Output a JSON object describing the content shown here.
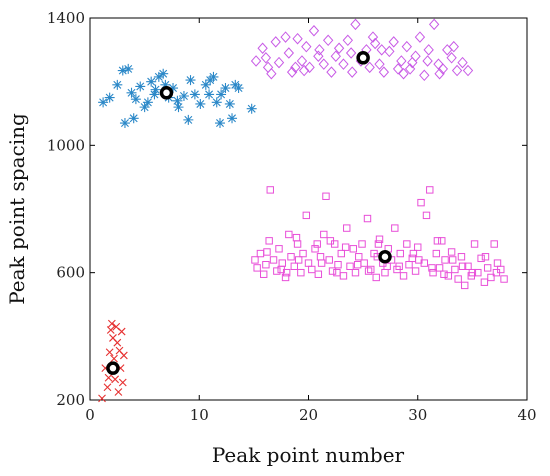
{
  "chart_data": {
    "type": "scatter",
    "title": "",
    "xlabel": "Peak point number",
    "ylabel": "Peak point spacing",
    "xlim": [
      0,
      40
    ],
    "ylim": [
      200,
      1400
    ],
    "xticks": [
      0,
      10,
      20,
      30,
      40
    ],
    "yticks": [
      200,
      600,
      1000,
      1400
    ],
    "x_tick_labels": [
      "0",
      "10",
      "20",
      "30",
      "40"
    ],
    "y_tick_labels": [
      "200",
      "600",
      "1000",
      "1400"
    ],
    "grid": false,
    "legend": "none",
    "series": [
      {
        "marker": "asterisk",
        "color": "#2b88c8",
        "points": [
          [
            1.2,
            1135
          ],
          [
            1.8,
            1150
          ],
          [
            2.5,
            1190
          ],
          [
            3.0,
            1235
          ],
          [
            3.5,
            1240
          ],
          [
            3.2,
            1070
          ],
          [
            3.8,
            1165
          ],
          [
            4.2,
            1145
          ],
          [
            4.6,
            1185
          ],
          [
            5.0,
            1120
          ],
          [
            5.6,
            1200
          ],
          [
            5.9,
            1160
          ],
          [
            6.3,
            1215
          ],
          [
            6.7,
            1225
          ],
          [
            6.9,
            1190
          ],
          [
            7.2,
            1150
          ],
          [
            7.6,
            1180
          ],
          [
            8.1,
            1120
          ],
          [
            8.6,
            1155
          ],
          [
            9.2,
            1205
          ],
          [
            9.6,
            1160
          ],
          [
            10.1,
            1130
          ],
          [
            10.6,
            1190
          ],
          [
            10.9,
            1160
          ],
          [
            11.3,
            1215
          ],
          [
            11.6,
            1135
          ],
          [
            11.9,
            1070
          ],
          [
            12.4,
            1180
          ],
          [
            12.8,
            1130
          ],
          [
            13.0,
            1085
          ],
          [
            13.3,
            1190
          ],
          [
            13.6,
            1180
          ],
          [
            5.3,
            1135
          ],
          [
            9.0,
            1080
          ],
          [
            12.0,
            1160
          ],
          [
            14.8,
            1115
          ],
          [
            4.0,
            1085
          ],
          [
            8.0,
            1140
          ],
          [
            11.0,
            1205
          ],
          [
            6.0,
            1175
          ]
        ]
      },
      {
        "marker": "diamond",
        "color": "#c85ae6",
        "points": [
          [
            15.2,
            1265
          ],
          [
            15.8,
            1305
          ],
          [
            16.3,
            1245
          ],
          [
            16.6,
            1225
          ],
          [
            17.0,
            1325
          ],
          [
            17.3,
            1260
          ],
          [
            17.9,
            1340
          ],
          [
            18.2,
            1290
          ],
          [
            18.5,
            1230
          ],
          [
            19.0,
            1335
          ],
          [
            19.4,
            1265
          ],
          [
            19.8,
            1310
          ],
          [
            20.1,
            1245
          ],
          [
            20.5,
            1360
          ],
          [
            20.9,
            1280
          ],
          [
            21.4,
            1255
          ],
          [
            21.8,
            1330
          ],
          [
            22.1,
            1230
          ],
          [
            22.5,
            1280
          ],
          [
            22.8,
            1305
          ],
          [
            23.2,
            1255
          ],
          [
            23.6,
            1330
          ],
          [
            24.0,
            1230
          ],
          [
            24.3,
            1380
          ],
          [
            24.8,
            1265
          ],
          [
            25.3,
            1300
          ],
          [
            25.6,
            1245
          ],
          [
            26.1,
            1320
          ],
          [
            26.5,
            1255
          ],
          [
            26.9,
            1230
          ],
          [
            27.4,
            1295
          ],
          [
            27.8,
            1325
          ],
          [
            28.2,
            1240
          ],
          [
            28.5,
            1265
          ],
          [
            29.0,
            1310
          ],
          [
            29.3,
            1240
          ],
          [
            29.8,
            1280
          ],
          [
            30.2,
            1340
          ],
          [
            30.6,
            1220
          ],
          [
            31.0,
            1300
          ],
          [
            31.5,
            1380
          ],
          [
            31.9,
            1255
          ],
          [
            32.3,
            1240
          ],
          [
            32.7,
            1300
          ],
          [
            33.1,
            1275
          ],
          [
            33.6,
            1235
          ],
          [
            34.1,
            1260
          ],
          [
            34.6,
            1235
          ],
          [
            16.1,
            1275
          ],
          [
            18.8,
            1245
          ],
          [
            21.0,
            1300
          ],
          [
            25.9,
            1340
          ],
          [
            28.7,
            1225
          ],
          [
            30.9,
            1265
          ],
          [
            33.3,
            1310
          ],
          [
            23.9,
            1290
          ],
          [
            19.6,
            1235
          ],
          [
            26.7,
            1300
          ],
          [
            29.5,
            1260
          ],
          [
            32.0,
            1225
          ]
        ]
      },
      {
        "marker": "square",
        "color": "#e84fd8",
        "points": [
          [
            15.1,
            640
          ],
          [
            15.3,
            615
          ],
          [
            15.6,
            660
          ],
          [
            15.9,
            595
          ],
          [
            16.1,
            625
          ],
          [
            16.4,
            700
          ],
          [
            16.5,
            860
          ],
          [
            16.8,
            640
          ],
          [
            17.1,
            605
          ],
          [
            17.3,
            675
          ],
          [
            17.6,
            630
          ],
          [
            17.9,
            585
          ],
          [
            18.2,
            720
          ],
          [
            18.4,
            650
          ],
          [
            18.7,
            620
          ],
          [
            19.0,
            690
          ],
          [
            19.3,
            600
          ],
          [
            19.5,
            660
          ],
          [
            19.8,
            780
          ],
          [
            20.0,
            630
          ],
          [
            20.3,
            610
          ],
          [
            20.6,
            675
          ],
          [
            20.9,
            595
          ],
          [
            21.1,
            650
          ],
          [
            21.4,
            720
          ],
          [
            21.6,
            840
          ],
          [
            21.9,
            640
          ],
          [
            22.2,
            605
          ],
          [
            22.4,
            690
          ],
          [
            22.7,
            625
          ],
          [
            23.0,
            660
          ],
          [
            23.2,
            590
          ],
          [
            23.5,
            740
          ],
          [
            23.8,
            620
          ],
          [
            24.1,
            675
          ],
          [
            24.3,
            600
          ],
          [
            24.6,
            650
          ],
          [
            24.9,
            690
          ],
          [
            25.1,
            630
          ],
          [
            25.4,
            770
          ],
          [
            25.7,
            610
          ],
          [
            26.0,
            660
          ],
          [
            26.2,
            585
          ],
          [
            26.5,
            705
          ],
          [
            26.8,
            630
          ],
          [
            27.0,
            600
          ],
          [
            27.3,
            675
          ],
          [
            27.6,
            640
          ],
          [
            27.9,
            740
          ],
          [
            28.1,
            610
          ],
          [
            28.4,
            660
          ],
          [
            28.7,
            590
          ],
          [
            29.0,
            690
          ],
          [
            29.2,
            625
          ],
          [
            29.5,
            645
          ],
          [
            29.8,
            605
          ],
          [
            30.0,
            680
          ],
          [
            30.3,
            820
          ],
          [
            30.6,
            630
          ],
          [
            30.8,
            780
          ],
          [
            31.1,
            860
          ],
          [
            31.4,
            600
          ],
          [
            31.7,
            660
          ],
          [
            32.0,
            615
          ],
          [
            32.2,
            700
          ],
          [
            32.5,
            640
          ],
          [
            32.8,
            590
          ],
          [
            33.1,
            665
          ],
          [
            33.4,
            610
          ],
          [
            33.7,
            580
          ],
          [
            34.0,
            650
          ],
          [
            34.3,
            560
          ],
          [
            34.6,
            620
          ],
          [
            34.9,
            590
          ],
          [
            35.2,
            690
          ],
          [
            35.5,
            600
          ],
          [
            35.8,
            645
          ],
          [
            36.1,
            570
          ],
          [
            36.4,
            615
          ],
          [
            36.7,
            585
          ],
          [
            37.0,
            690
          ],
          [
            37.3,
            630
          ],
          [
            37.6,
            610
          ],
          [
            37.9,
            580
          ],
          [
            17.5,
            610
          ],
          [
            19.1,
            640
          ],
          [
            20.8,
            690
          ],
          [
            22.6,
            600
          ],
          [
            24.5,
            625
          ],
          [
            26.3,
            650
          ],
          [
            28.3,
            620
          ],
          [
            30.1,
            640
          ],
          [
            32.4,
            595
          ],
          [
            34.1,
            620
          ],
          [
            36.2,
            650
          ],
          [
            16.2,
            665
          ],
          [
            18.0,
            600
          ],
          [
            21.2,
            630
          ],
          [
            23.4,
            680
          ],
          [
            25.5,
            605
          ],
          [
            27.2,
            620
          ],
          [
            29.6,
            660
          ],
          [
            31.3,
            615
          ],
          [
            33.2,
            640
          ],
          [
            35.0,
            600
          ],
          [
            37.2,
            600
          ],
          [
            18.9,
            710
          ],
          [
            22.0,
            700
          ],
          [
            26.4,
            690
          ],
          [
            31.8,
            700
          ]
        ]
      },
      {
        "marker": "cross",
        "color": "#e63030",
        "points": [
          [
            1.1,
            205
          ],
          [
            1.4,
            300
          ],
          [
            1.6,
            240
          ],
          [
            1.8,
            350
          ],
          [
            1.9,
            420
          ],
          [
            2.0,
            440
          ],
          [
            2.1,
            395
          ],
          [
            2.2,
            330
          ],
          [
            2.3,
            265
          ],
          [
            2.4,
            430
          ],
          [
            2.5,
            380
          ],
          [
            2.7,
            355
          ],
          [
            2.8,
            300
          ],
          [
            2.9,
            415
          ],
          [
            3.0,
            255
          ],
          [
            1.7,
            270
          ],
          [
            2.6,
            225
          ],
          [
            3.1,
            340
          ]
        ]
      }
    ],
    "centroids": [
      [
        7.0,
        1165
      ],
      [
        25.0,
        1275
      ],
      [
        27.0,
        650
      ],
      [
        2.1,
        300
      ]
    ]
  }
}
